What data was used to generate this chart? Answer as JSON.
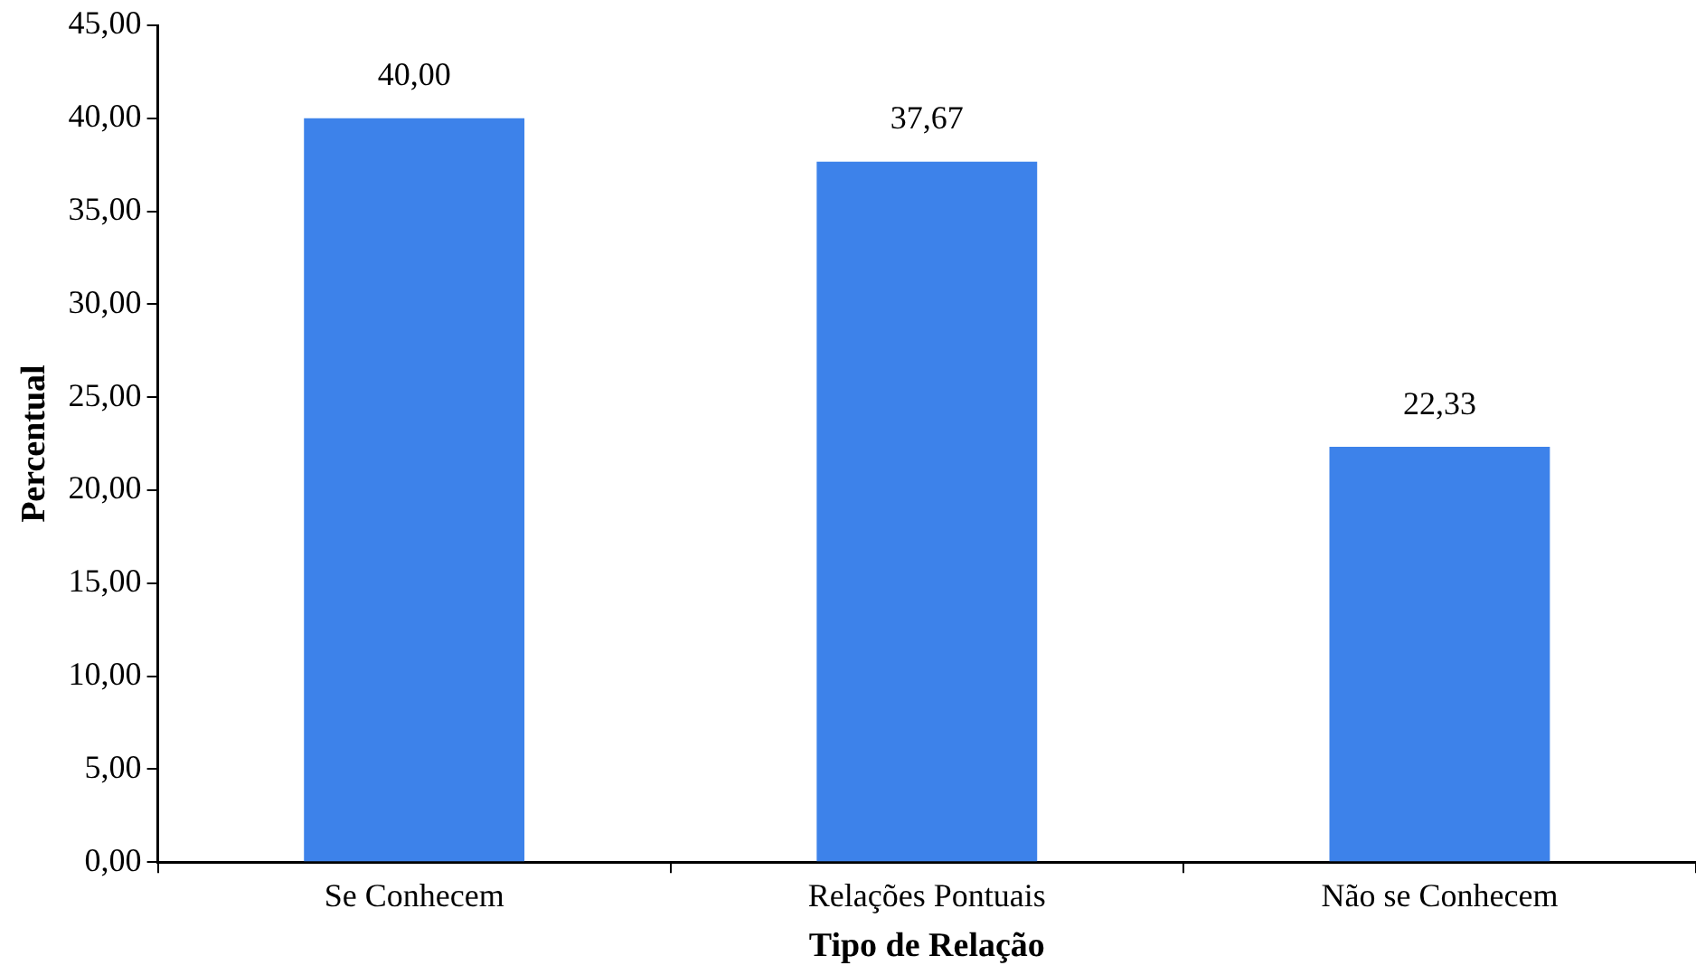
{
  "chart_data": {
    "type": "bar",
    "xlabel": "Tipo de Relação",
    "ylabel": "Percentual",
    "categories": [
      "Se Conhecem",
      "Relações Pontuais",
      "Não se Conhecem"
    ],
    "values": [
      40.0,
      37.67,
      22.33
    ],
    "value_labels": [
      "40,00",
      "37,67",
      "22,33"
    ],
    "color": "#3d82ea",
    "ylim": [
      0,
      45
    ],
    "yticks": [
      {
        "value": 0,
        "label": "0,00"
      },
      {
        "value": 5,
        "label": "5,00"
      },
      {
        "value": 10,
        "label": "10,00"
      },
      {
        "value": 15,
        "label": "15,00"
      },
      {
        "value": 20,
        "label": "20,00"
      },
      {
        "value": 25,
        "label": "25,00"
      },
      {
        "value": 30,
        "label": "30,00"
      },
      {
        "value": 35,
        "label": "35,00"
      },
      {
        "value": 40,
        "label": "40,00"
      },
      {
        "value": 45,
        "label": "45,00"
      }
    ],
    "grid": false,
    "legend": false
  }
}
